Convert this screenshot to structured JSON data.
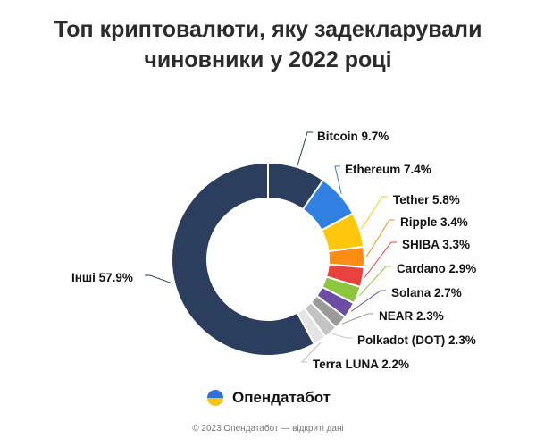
{
  "brand": {
    "name": "Опендатабот",
    "logo_icon": "opendatabot-logo-icon",
    "logo_colors": [
      "#2e6fd8",
      "#f5c518"
    ]
  },
  "footer": {
    "text": "© 2023 Опендатабот — відкриті дані"
  },
  "chart_data": {
    "type": "pie",
    "title": "Топ криптовалюти, яку задекларували чиновники у 2022 році",
    "donut": true,
    "slices": [
      {
        "label": "Bitcoin",
        "value": 9.7,
        "display": "Bitcoin 9.7%",
        "color": "#2c3e5e"
      },
      {
        "label": "Ethereum",
        "value": 7.4,
        "display": "Ethereum 7.4%",
        "color": "#2f80e0"
      },
      {
        "label": "Tether",
        "value": 5.8,
        "display": "Tether 5.8%",
        "color": "#fdc70c"
      },
      {
        "label": "Ripple",
        "value": 3.4,
        "display": "Ripple 3.4%",
        "color": "#fb8c14"
      },
      {
        "label": "SHIBA",
        "value": 3.3,
        "display": "SHIBA 3.3%",
        "color": "#e8413e"
      },
      {
        "label": "Cardano",
        "value": 2.9,
        "display": "Cardano 2.9%",
        "color": "#8cc63f"
      },
      {
        "label": "Solana",
        "value": 2.7,
        "display": "Solana 2.7%",
        "color": "#6b4ea3"
      },
      {
        "label": "NEAR",
        "value": 2.3,
        "display": "NEAR 2.3%",
        "color": "#9a9a9a"
      },
      {
        "label": "Polkadot (DOT)",
        "value": 2.3,
        "display": "Polkadot (DOT) 2.3%",
        "color": "#c3c3c3"
      },
      {
        "label": "Terra LUNA",
        "value": 2.2,
        "display": "Terra LUNA 2.2%",
        "color": "#e4e4e4"
      },
      {
        "label": "Інші",
        "value": 57.9,
        "display": "Інші 57.9%",
        "color": "#2c3e5e"
      }
    ]
  }
}
